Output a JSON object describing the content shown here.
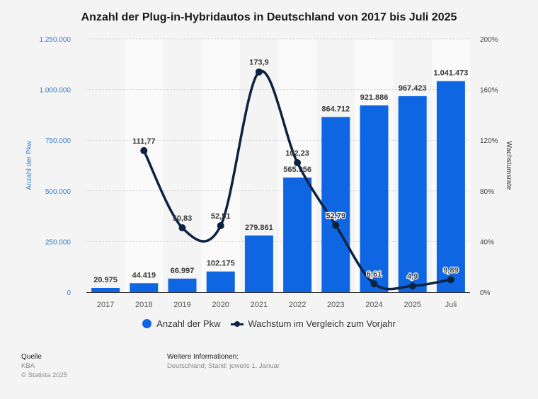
{
  "title": "Anzahl der Plug-in-Hybridautos in Deutschland von 2017 bis Juli 2025",
  "chart_data": {
    "type": "bar",
    "title": "Anzahl der Plug-in-Hybridautos in Deutschland von 2017 bis Juli 2025",
    "categories": [
      "2017",
      "2018",
      "2019",
      "2020",
      "2021",
      "2022",
      "2023",
      "2024",
      "2025",
      "Juli"
    ],
    "series": [
      {
        "name": "Anzahl der Pkw",
        "type": "bar",
        "axis": "left",
        "color": "#0e66e3",
        "values": [
          20975,
          44419,
          66997,
          102175,
          279861,
          565956,
          864712,
          921886,
          967423,
          1041473
        ],
        "labels": [
          "20.975",
          "44.419",
          "66.997",
          "102.175",
          "279.861",
          "565.956",
          "864.712",
          "921.886",
          "967.423",
          "1.041.473"
        ]
      },
      {
        "name": "Wachstum im Vergleich zum Vorjahr",
        "type": "line",
        "axis": "right",
        "color": "#0c2340",
        "values": [
          null,
          111.77,
          50.83,
          52.51,
          173.9,
          102.23,
          52.79,
          6.61,
          4.9,
          9.89
        ],
        "labels": [
          "",
          "111,77",
          "50,83",
          "52,51",
          "173,9",
          "102,23",
          "52,79",
          "6,61",
          "4,9",
          "9,89"
        ]
      }
    ],
    "ylabel": "Anzahl der Pkw",
    "y2label": "Wachstumsrate",
    "ylim": [
      0,
      1250000
    ],
    "y2lim": [
      0,
      200
    ],
    "yticks": [
      0,
      250000,
      500000,
      750000,
      1000000,
      1250000
    ],
    "ytick_labels": [
      "0",
      "250.000",
      "500.000",
      "750.000",
      "1.000.000",
      "1.250.000"
    ],
    "y2ticks": [
      0,
      40,
      80,
      120,
      160,
      200
    ],
    "y2tick_labels": [
      "0%",
      "40%",
      "80%",
      "120%",
      "160%",
      "200%"
    ],
    "grid": true,
    "legend_position": "bottom"
  },
  "legend": {
    "bar_label": "Anzahl der Pkw",
    "line_label": "Wachstum im Vergleich zum Vorjahr"
  },
  "footer": {
    "source_heading": "Quelle",
    "source": "KBA",
    "copyright": "© Statista 2025",
    "info_heading": "Weitere Informationen:",
    "info": "Deutschland; Stand: jeweils 1. Januar"
  }
}
